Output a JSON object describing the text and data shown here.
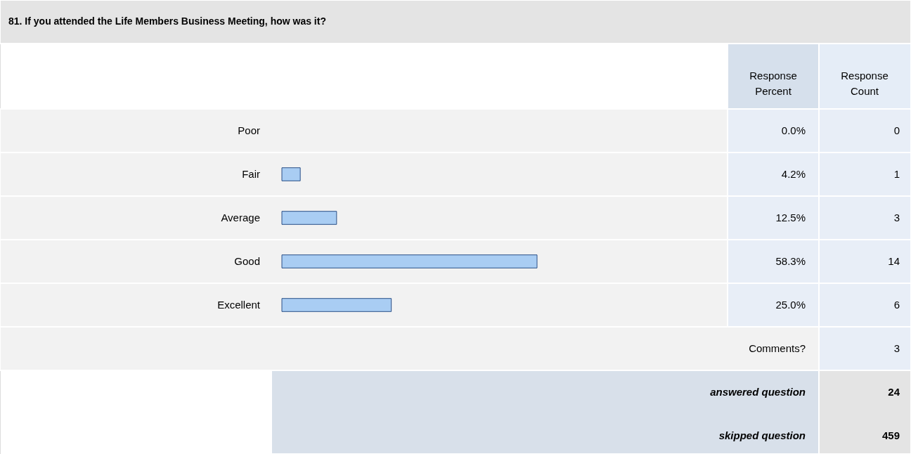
{
  "chart_data": {
    "type": "bar",
    "orientation": "horizontal",
    "title": "81. If you attended the Life Members Business Meeting, how was it?",
    "categories": [
      "Poor",
      "Fair",
      "Average",
      "Good",
      "Excellent"
    ],
    "values": [
      0.0,
      4.2,
      12.5,
      58.3,
      25.0
    ],
    "value_labels": [
      "0.0%",
      "4.2%",
      "12.5%",
      "58.3%",
      "25.0%"
    ],
    "color": "#a9cdf3",
    "annotations": [
      "Response Percent",
      "Response Count",
      "0",
      "1",
      "3",
      "14",
      "6",
      "Comments?",
      "3",
      "answered question",
      "24",
      "skipped question",
      "459"
    ]
  }
}
